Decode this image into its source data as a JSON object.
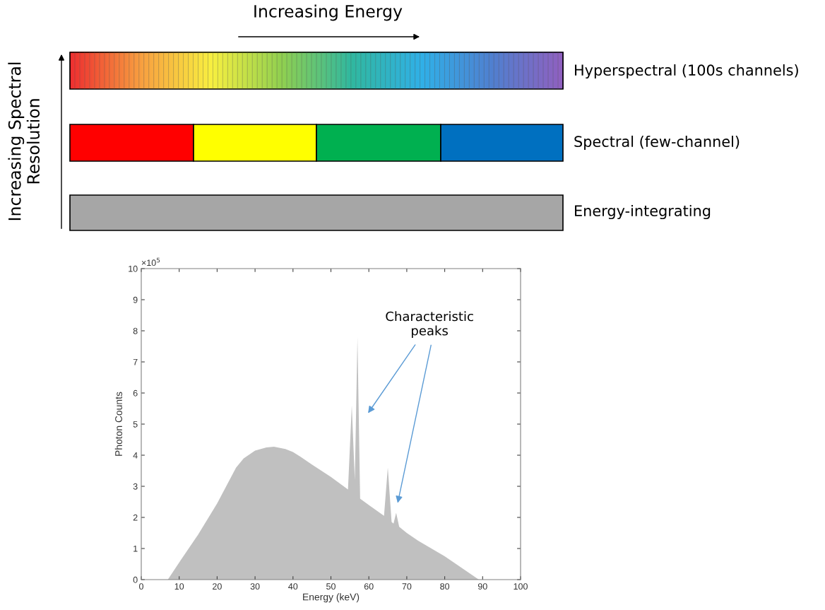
{
  "chart_data": [
    {
      "type": "other",
      "title": "Increasing Energy",
      "ylabel": "Increasing Spectral\nResolution",
      "annotations": [
        "Hyperspectral (100s channels)",
        "Spectral (few-channel)",
        "Energy-integrating"
      ]
    },
    {
      "type": "area",
      "color": "#c0c0c0",
      "x": [
        7,
        10,
        15,
        20,
        25,
        27,
        30,
        33,
        35,
        38,
        40,
        42,
        45,
        50,
        54.5,
        55.5,
        56.3,
        57,
        57.7,
        60,
        64,
        65,
        66,
        66.5,
        67.2,
        68,
        70,
        73,
        80,
        89
      ],
      "values": [
        0,
        0.55,
        1.45,
        2.45,
        3.6,
        3.9,
        4.15,
        4.25,
        4.27,
        4.2,
        4.1,
        3.95,
        3.7,
        3.3,
        2.9,
        5.6,
        3.2,
        7.8,
        2.6,
        2.4,
        2.05,
        3.6,
        1.85,
        1.8,
        2.15,
        1.7,
        1.5,
        1.25,
        0.75,
        0
      ],
      "xlim": [
        0,
        100
      ],
      "xticks": [
        0,
        10,
        20,
        30,
        40,
        50,
        60,
        70,
        80,
        90,
        100
      ],
      "ylim": [
        0,
        10
      ],
      "yticks": [
        0,
        1,
        2,
        3,
        4,
        5,
        6,
        7,
        8,
        9,
        10
      ],
      "xlabel": "Energy (keV)",
      "ylabel": "Photon Counts",
      "grid": false,
      "annotations": [
        "×10$^{5}$",
        "Characteristic\npeaks"
      ]
    }
  ]
}
